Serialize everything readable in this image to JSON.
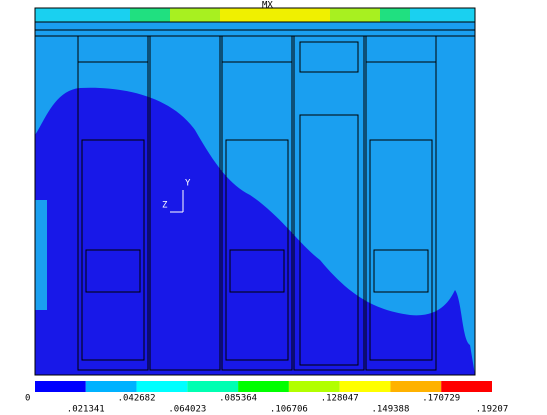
{
  "title": "MX",
  "triad": {
    "y": "Y",
    "z": "Z"
  },
  "legend": {
    "colors": [
      "#0000ff",
      "#00b2ff",
      "#00ffff",
      "#00ffb2",
      "#00ff00",
      "#b2ff00",
      "#ffff00",
      "#ffb200",
      "#ff0000"
    ],
    "labels": [
      "0",
      ".021341",
      ".042682",
      ".064023",
      ".085364",
      ".106706",
      ".128047",
      ".149388",
      ".170729",
      ".19207"
    ]
  }
}
